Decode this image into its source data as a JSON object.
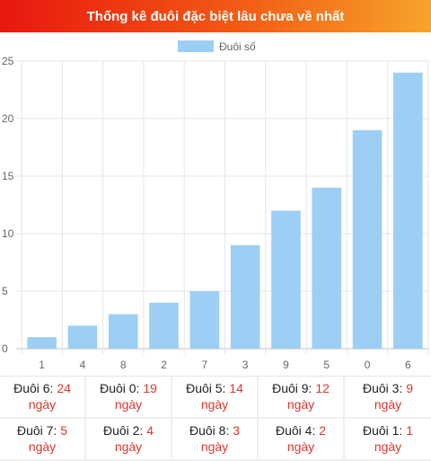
{
  "header": {
    "title": "Thống kê đuôi đặc biệt lâu chưa về nhất"
  },
  "colors": {
    "bar": "#9ccff3",
    "header_start": "#e8170f",
    "header_end": "#f7a42a",
    "accent": "#e0342b"
  },
  "chart_data": {
    "type": "bar",
    "title": "Thống kê đuôi đặc biệt lâu chưa về nhất",
    "categories": [
      "1",
      "4",
      "8",
      "2",
      "7",
      "3",
      "9",
      "5",
      "0",
      "6"
    ],
    "series": [
      {
        "name": "Đuôi số",
        "values": [
          1,
          2,
          3,
          4,
          5,
          9,
          12,
          14,
          19,
          24
        ]
      }
    ],
    "ylim": [
      0,
      25
    ],
    "yticks": [
      "0",
      "5",
      "10",
      "15",
      "20",
      "25"
    ],
    "grid": true,
    "legend_position": "top"
  },
  "stats": [
    {
      "label": "Đuôi 6:",
      "value": "24",
      "unit": "ngày"
    },
    {
      "label": "Đuôi 0:",
      "value": "19",
      "unit": "ngày"
    },
    {
      "label": "Đuôi 5:",
      "value": "14",
      "unit": "ngày"
    },
    {
      "label": "Đuôi 9:",
      "value": "12",
      "unit": "ngày"
    },
    {
      "label": "Đuôi 3:",
      "value": "9",
      "unit": "ngày"
    },
    {
      "label": "Đuôi 7:",
      "value": "5",
      "unit": "ngày"
    },
    {
      "label": "Đuôi 2:",
      "value": "4",
      "unit": "ngày"
    },
    {
      "label": "Đuôi 8:",
      "value": "3",
      "unit": "ngày"
    },
    {
      "label": "Đuôi 4:",
      "value": "2",
      "unit": "ngày"
    },
    {
      "label": "Đuôi 1:",
      "value": "1",
      "unit": "ngày"
    }
  ]
}
